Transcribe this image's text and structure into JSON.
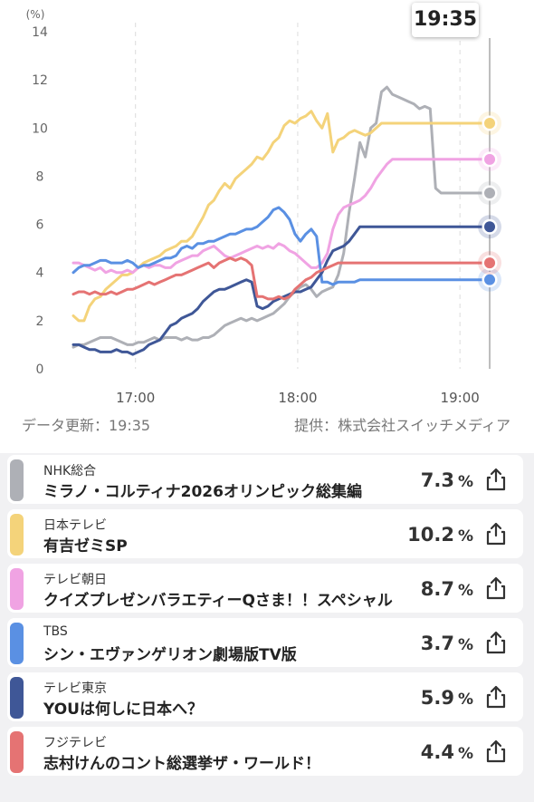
{
  "header": {
    "time": "19:35"
  },
  "chart_data": {
    "type": "line",
    "y_unit": "(%)",
    "ylim": [
      0,
      14
    ],
    "yticks": [
      0,
      2,
      4,
      6,
      8,
      10,
      12,
      14
    ],
    "x_labels": [
      "17:00",
      "18:00",
      "19:00"
    ],
    "x_tick_values": [
      150,
      210,
      270
    ],
    "x_range": [
      126,
      283
    ],
    "now": 281,
    "x": [
      127,
      129,
      131,
      133,
      135,
      137,
      139,
      141,
      143,
      145,
      147,
      149,
      151,
      153,
      155,
      157,
      159,
      161,
      163,
      165,
      167,
      169,
      171,
      173,
      175,
      177,
      179,
      181,
      183,
      185,
      187,
      189,
      191,
      193,
      195,
      197,
      199,
      201,
      203,
      205,
      207,
      209,
      211,
      213,
      215,
      217,
      219,
      221,
      223,
      225,
      227,
      229,
      231,
      233,
      235,
      237,
      239,
      241,
      243,
      245,
      247,
      249,
      251,
      253,
      255,
      257,
      259,
      261,
      263,
      265,
      267,
      269,
      271,
      273,
      275,
      277,
      279,
      281
    ],
    "series": [
      {
        "name": "NHK総合",
        "color": "#aeb0b6",
        "values": [
          0.9,
          1.0,
          1.0,
          1.1,
          1.2,
          1.3,
          1.3,
          1.3,
          1.2,
          1.1,
          1.0,
          1.0,
          1.1,
          1.1,
          1.2,
          1.3,
          1.2,
          1.3,
          1.3,
          1.3,
          1.2,
          1.3,
          1.2,
          1.2,
          1.3,
          1.3,
          1.4,
          1.6,
          1.8,
          1.9,
          2.0,
          2.1,
          2.0,
          2.1,
          2.0,
          2.1,
          2.2,
          2.3,
          2.5,
          2.7,
          3.0,
          3.2,
          3.4,
          3.5,
          3.3,
          3.0,
          3.2,
          3.3,
          3.4,
          3.9,
          4.8,
          6.5,
          7.9,
          9.4,
          8.8,
          10.0,
          10.2,
          11.5,
          11.7,
          11.4,
          11.3,
          11.2,
          11.1,
          11.0,
          10.8,
          10.9,
          10.8,
          7.5,
          7.3,
          7.3,
          7.3,
          7.3,
          7.3,
          7.3,
          7.3,
          7.3,
          7.3,
          7.3
        ]
      },
      {
        "name": "日本テレビ",
        "color": "#f4d37a",
        "values": [
          2.2,
          2.0,
          2.0,
          2.6,
          2.9,
          3.0,
          3.3,
          3.5,
          3.7,
          3.9,
          3.9,
          4.0,
          4.2,
          4.4,
          4.5,
          4.6,
          4.7,
          4.9,
          5.0,
          5.1,
          5.3,
          5.3,
          5.5,
          5.9,
          6.3,
          6.8,
          7.0,
          7.4,
          7.7,
          7.5,
          7.9,
          8.1,
          8.3,
          8.5,
          8.8,
          8.7,
          9.0,
          9.4,
          9.6,
          10.1,
          10.3,
          10.2,
          10.4,
          10.5,
          10.7,
          10.3,
          10.0,
          10.6,
          9.0,
          9.5,
          9.6,
          9.8,
          9.9,
          9.8,
          9.7,
          9.8,
          10.0,
          10.2,
          10.2,
          10.2,
          10.2,
          10.2,
          10.2,
          10.2,
          10.2,
          10.2,
          10.2,
          10.2,
          10.2,
          10.2,
          10.2,
          10.2,
          10.2,
          10.2,
          10.2,
          10.2,
          10.2,
          10.2
        ]
      },
      {
        "name": "テレビ朝日",
        "color": "#f0a3e3",
        "values": [
          4.4,
          4.4,
          4.3,
          4.2,
          4.1,
          4.2,
          4.0,
          4.1,
          4.0,
          4.0,
          4.1,
          4.0,
          4.2,
          4.3,
          4.2,
          4.3,
          4.3,
          4.2,
          4.2,
          4.4,
          4.5,
          4.6,
          4.7,
          4.7,
          4.9,
          5.0,
          5.1,
          4.9,
          4.7,
          4.6,
          4.7,
          4.8,
          4.9,
          5.0,
          5.1,
          5.0,
          5.1,
          5.0,
          5.2,
          5.1,
          4.9,
          4.8,
          4.6,
          4.4,
          4.2,
          4.2,
          4.4,
          4.8,
          5.8,
          6.4,
          6.7,
          6.8,
          6.9,
          7.0,
          7.2,
          7.5,
          7.9,
          8.2,
          8.5,
          8.7,
          8.7,
          8.7,
          8.7,
          8.7,
          8.7,
          8.7,
          8.7,
          8.7,
          8.7,
          8.7,
          8.7,
          8.7,
          8.7,
          8.7,
          8.7,
          8.7,
          8.7,
          8.7
        ]
      },
      {
        "name": "TBS",
        "color": "#5a90e3",
        "values": [
          4.0,
          4.2,
          4.3,
          4.3,
          4.4,
          4.5,
          4.5,
          4.4,
          4.4,
          4.4,
          4.5,
          4.4,
          4.2,
          4.3,
          4.3,
          4.4,
          4.5,
          4.6,
          4.6,
          4.7,
          5.0,
          5.1,
          5.0,
          5.2,
          5.2,
          5.3,
          5.3,
          5.4,
          5.5,
          5.6,
          5.6,
          5.7,
          5.8,
          5.8,
          5.9,
          6.1,
          6.3,
          6.6,
          6.7,
          6.5,
          6.2,
          5.6,
          5.3,
          5.6,
          5.8,
          5.5,
          3.6,
          3.6,
          3.5,
          3.6,
          3.6,
          3.6,
          3.6,
          3.7,
          3.7,
          3.7,
          3.7,
          3.7,
          3.7,
          3.7,
          3.7,
          3.7,
          3.7,
          3.7,
          3.7,
          3.7,
          3.7,
          3.7,
          3.7,
          3.7,
          3.7,
          3.7,
          3.7,
          3.7,
          3.7,
          3.7,
          3.7,
          3.7
        ]
      },
      {
        "name": "テレビ東京",
        "color": "#3f5797",
        "values": [
          1.0,
          1.0,
          0.9,
          0.8,
          0.8,
          0.7,
          0.7,
          0.7,
          0.8,
          0.7,
          0.7,
          0.6,
          0.7,
          0.8,
          1.0,
          1.1,
          1.2,
          1.5,
          1.8,
          1.9,
          2.1,
          2.2,
          2.3,
          2.5,
          2.8,
          3.0,
          3.2,
          3.3,
          3.3,
          3.4,
          3.5,
          3.6,
          3.7,
          3.6,
          2.6,
          2.5,
          2.6,
          2.8,
          2.9,
          3.0,
          3.1,
          3.2,
          3.2,
          3.3,
          3.4,
          3.7,
          4.0,
          4.5,
          4.9,
          5.0,
          5.1,
          5.3,
          5.6,
          5.9,
          5.9,
          5.9,
          5.9,
          5.9,
          5.9,
          5.9,
          5.9,
          5.9,
          5.9,
          5.9,
          5.9,
          5.9,
          5.9,
          5.9,
          5.9,
          5.9,
          5.9,
          5.9,
          5.9,
          5.9,
          5.9,
          5.9,
          5.9,
          5.9
        ]
      },
      {
        "name": "フジテレビ",
        "color": "#e57373",
        "values": [
          3.1,
          3.2,
          3.2,
          3.1,
          3.2,
          3.1,
          3.1,
          3.2,
          3.1,
          3.2,
          3.3,
          3.3,
          3.4,
          3.5,
          3.6,
          3.5,
          3.6,
          3.7,
          3.8,
          3.9,
          3.9,
          4.0,
          4.1,
          4.2,
          4.3,
          4.4,
          4.2,
          4.4,
          4.5,
          4.6,
          4.5,
          4.6,
          4.5,
          4.3,
          3.0,
          3.0,
          2.9,
          2.9,
          3.0,
          2.9,
          3.0,
          3.3,
          3.5,
          3.7,
          3.8,
          4.0,
          4.1,
          4.2,
          4.3,
          4.4,
          4.4,
          4.4,
          4.4,
          4.4,
          4.4,
          4.4,
          4.4,
          4.4,
          4.4,
          4.4,
          4.4,
          4.4,
          4.4,
          4.4,
          4.4,
          4.4,
          4.4,
          4.4,
          4.4,
          4.4,
          4.4,
          4.4,
          4.4,
          4.4,
          4.4,
          4.4,
          4.4,
          4.4
        ]
      }
    ]
  },
  "footer": {
    "updated": "データ更新：19:35",
    "source": "提供：株式会社スイッチメディア"
  },
  "percent_sign": "%",
  "list": [
    {
      "channel": "NHK総合",
      "program": "ミラノ・コルティナ2026オリンピック総集編",
      "rating": "7.3",
      "color": "#aeb0b6"
    },
    {
      "channel": "日本テレビ",
      "program": "有吉ゼミSP",
      "rating": "10.2",
      "color": "#f4d37a"
    },
    {
      "channel": "テレビ朝日",
      "program": "クイズプレゼンバラエティーQさま！！スペシャル",
      "rating": "8.7",
      "color": "#f0a3e3"
    },
    {
      "channel": "TBS",
      "program": "シン・エヴァンゲリオン劇場版TV版",
      "rating": "3.7",
      "color": "#5a90e3"
    },
    {
      "channel": "テレビ東京",
      "program": "YOUは何しに日本へ？",
      "rating": "5.9",
      "color": "#3f5797"
    },
    {
      "channel": "フジテレビ",
      "program": "志村けんのコント総選挙ザ・ワールド！",
      "rating": "4.4",
      "color": "#e57373"
    }
  ]
}
